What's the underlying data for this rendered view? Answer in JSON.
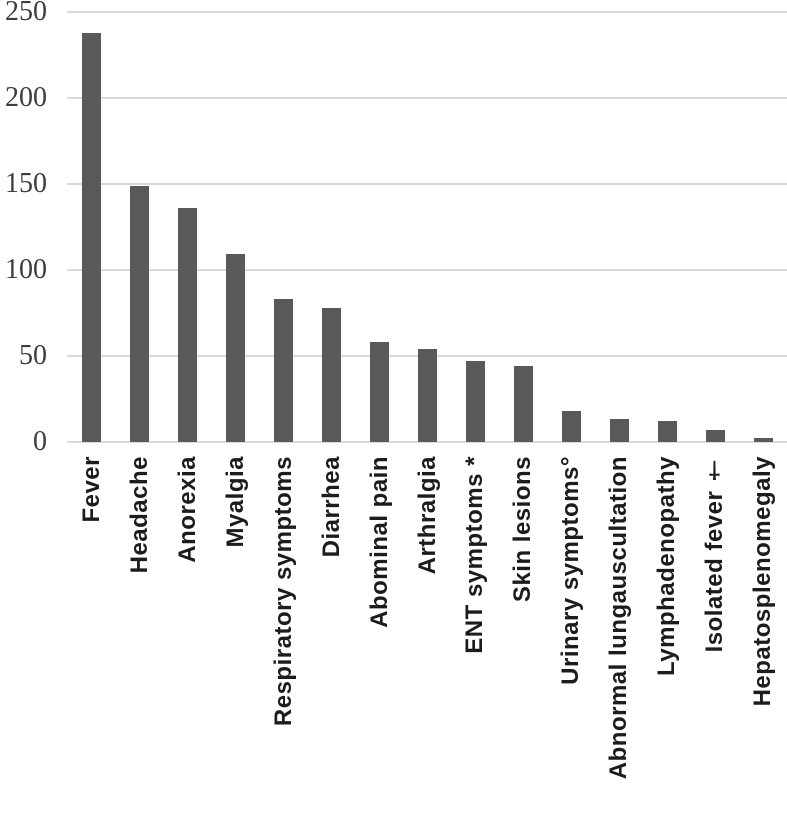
{
  "chart_data": {
    "type": "bar",
    "title": "",
    "xlabel": "",
    "ylabel": "",
    "categories": [
      "Fever",
      "Headache",
      "Anorexia",
      "Myalgia",
      "Respiratory symptoms",
      "Diarrhea",
      "Abominal pain",
      "Arthralgia",
      "ENT symptoms *",
      "Skin lesions",
      "Urinary symptoms°",
      "Abnormal lungauscultation",
      "Lymphadenopathy",
      "Isolated fever †",
      "Hepatosplenomegaly"
    ],
    "values": [
      238,
      149,
      136,
      109,
      83,
      78,
      58,
      54,
      47,
      44,
      18,
      13,
      12,
      7,
      2
    ],
    "ylim": [
      0,
      250
    ],
    "yticks": [
      0,
      50,
      100,
      150,
      200,
      250
    ],
    "grid": "horizontal-only",
    "legend": "none",
    "x_label_rotation": "90deg-counterclockwise-read-bottom-to-top",
    "colors": {
      "bar": "#595959",
      "gridline": "#d9d9d9",
      "ytick_text": "#3d3d3d",
      "xtick_text": "#1c1c1c",
      "background": "#ffffff"
    }
  }
}
